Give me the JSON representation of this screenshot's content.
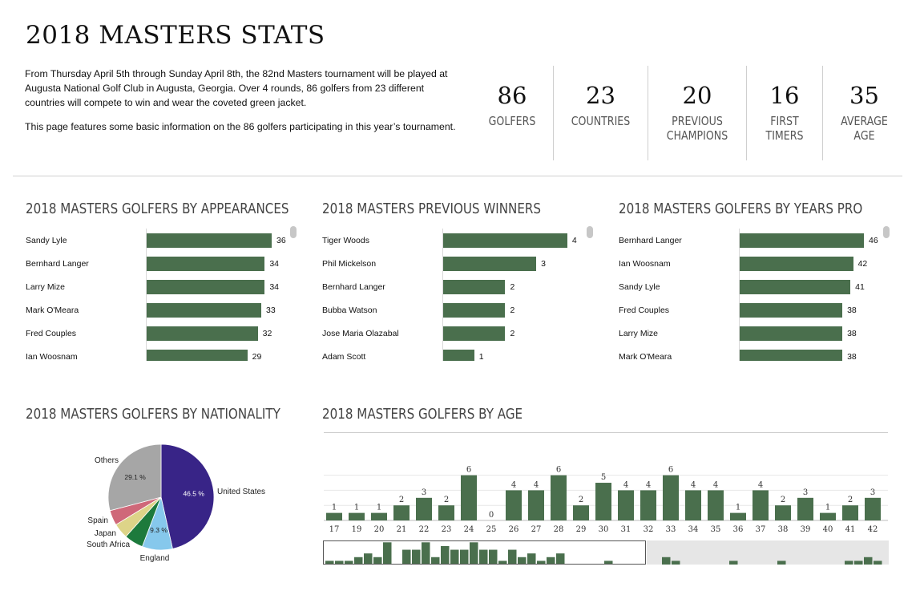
{
  "page": {
    "title": "2018 MASTERS STATS",
    "intro": [
      "From Thursday April 5th through Sunday April 8th, the 82nd Masters tournament will be played at Augusta National Golf Club in Augusta, Georgia. Over 4 rounds, 86 golfers from 23 different countries will compete to win and wear the coveted green jacket.",
      "This page features some basic information on the 86 golfers participating in this year’s tournament."
    ]
  },
  "kpis": [
    {
      "value": "86",
      "label": "GOLFERS"
    },
    {
      "value": "23",
      "label": "COUNTRIES"
    },
    {
      "value": "20",
      "label": "PREVIOUS\nCHAMPIONS"
    },
    {
      "value": "16",
      "label": "FIRST\nTIMERS"
    },
    {
      "value": "35",
      "label": "AVERAGE\nAGE"
    }
  ],
  "colors": {
    "bar": "#4a6f4d",
    "axis": "#d8d8d8",
    "text": "#111111"
  },
  "chart_data": [
    {
      "type": "bar",
      "orientation": "horizontal",
      "title": "2018 MASTERS GOLFERS BY APPEARANCES",
      "categories": [
        "Sandy Lyle",
        "Bernhard Langer",
        "Larry Mize",
        "Mark O'Meara",
        "Fred Couples",
        "Ian Woosnam"
      ],
      "values": [
        36,
        34,
        34,
        33,
        32,
        29
      ],
      "xlim": [
        0,
        42
      ]
    },
    {
      "type": "bar",
      "orientation": "horizontal",
      "title": "2018 MASTERS PREVIOUS WINNERS",
      "categories": [
        "Tiger Woods",
        "Phil Mickelson",
        "Bernhard Langer",
        "Bubba Watson",
        "Jose Maria Olazabal",
        "Adam Scott"
      ],
      "values": [
        4,
        3,
        2,
        2,
        2,
        1
      ],
      "xlim": [
        0,
        4.7
      ]
    },
    {
      "type": "bar",
      "orientation": "horizontal",
      "title": "2018 MASTERS GOLFERS BY YEARS PRO",
      "categories": [
        "Bernhard Langer",
        "Ian Woosnam",
        "Sandy Lyle",
        "Fred Couples",
        "Larry Mize",
        "Mark O'Meara"
      ],
      "values": [
        46,
        42,
        41,
        38,
        38,
        38
      ],
      "xlim": [
        0,
        54
      ]
    },
    {
      "type": "pie",
      "title": "2018 MASTERS GOLFERS BY NATIONALITY",
      "slices": [
        {
          "label": "United States",
          "value": 46.5,
          "value_label": "46.5 %",
          "color": "#382487"
        },
        {
          "label": "England",
          "value": 9.3,
          "value_label": "9.3 %",
          "color": "#86c8ec"
        },
        {
          "label": "South Africa",
          "value": 5.8,
          "value_label": "",
          "color": "#1d7a3c"
        },
        {
          "label": "Japan",
          "value": 4.7,
          "value_label": "",
          "color": "#ddd488"
        },
        {
          "label": "Spain",
          "value": 4.6,
          "value_label": "",
          "color": "#cf6879"
        },
        {
          "label": "Others",
          "value": 29.1,
          "value_label": "29.1 %",
          "color": "#a6a6a6"
        }
      ]
    },
    {
      "type": "bar",
      "title": "2018 MASTERS GOLFERS BY AGE",
      "categories": [
        "17",
        "19",
        "20",
        "21",
        "22",
        "23",
        "24",
        "25",
        "26",
        "27",
        "28",
        "29",
        "30",
        "31",
        "32",
        "33",
        "34",
        "35",
        "36",
        "37",
        "38",
        "39",
        "40",
        "41",
        "42"
      ],
      "values": [
        1,
        1,
        1,
        2,
        3,
        2,
        6,
        0,
        4,
        4,
        6,
        2,
        5,
        4,
        4,
        6,
        4,
        4,
        1,
        4,
        2,
        3,
        1,
        2,
        3
      ],
      "ylim": [
        0,
        6.6
      ],
      "scrollbar_values": [
        1,
        1,
        1,
        2,
        3,
        2,
        6,
        0,
        4,
        4,
        6,
        2,
        5,
        4,
        4,
        6,
        4,
        4,
        1,
        4,
        2,
        3,
        1,
        2,
        3,
        0,
        0,
        0,
        0,
        1,
        0,
        0,
        0,
        0,
        0,
        2,
        1,
        0,
        0,
        0,
        0,
        0,
        1,
        0,
        0,
        0,
        0,
        1,
        0,
        0,
        0,
        0,
        0,
        0,
        1,
        1,
        2,
        1
      ]
    }
  ]
}
